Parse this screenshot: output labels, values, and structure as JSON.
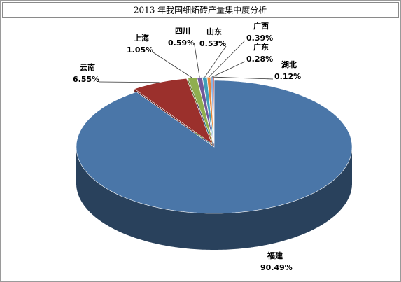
{
  "chart_data": {
    "type": "pie",
    "title": "2013 年我国细炻砖产量集中度分析",
    "categories": [
      "福建",
      "云南",
      "上海",
      "四川",
      "山东",
      "广西",
      "广东",
      "湖北"
    ],
    "values": [
      90.49,
      6.55,
      1.05,
      0.59,
      0.53,
      0.39,
      0.28,
      0.12
    ],
    "value_labels": [
      "90.49%",
      "6.55%",
      "1.05%",
      "0.59%",
      "0.53%",
      "0.39%",
      "0.28%",
      "0.12%"
    ],
    "colors": [
      "#4a76a8",
      "#9b302c",
      "#8fae4f",
      "#71589a",
      "#3f9fbb",
      "#e8873a",
      "#8eb4e3",
      "#c0504d"
    ]
  }
}
